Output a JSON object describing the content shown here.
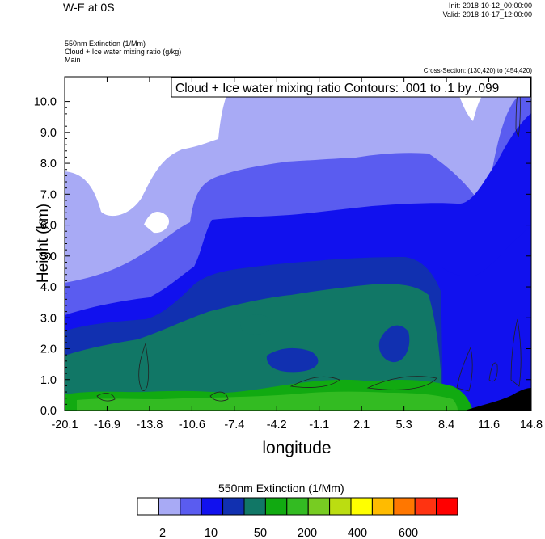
{
  "header": {
    "title": "W-E at 0S",
    "init": "Init: 2018-10-12_00:00:00",
    "valid": "Valid: 2018-10-17_12:00:00",
    "field1": "550nm Extinction   (1/Mm)",
    "field2": "Cloud + Ice water mixing ratio   (g/kg)",
    "field3": "Main",
    "cross_section": "Cross-Section: (130,420) to (454,420)"
  },
  "chart_data": {
    "type": "heatmap",
    "title": "W-E at 0S",
    "xlabel": "longitude",
    "ylabel": "Height (km)",
    "xlim": [
      -20.1,
      14.8
    ],
    "ylim": [
      0.0,
      10.8
    ],
    "x_ticks": [
      "-20.1",
      "-16.9",
      "-13.8",
      "-10.6",
      "-7.4",
      "-4.2",
      "-1.1",
      "2.1",
      "5.3",
      "8.4",
      "11.6",
      "14.8"
    ],
    "y_ticks": [
      "0.0",
      "1.0",
      "2.0",
      "3.0",
      "4.0",
      "5.0",
      "6.0",
      "7.0",
      "8.0",
      "9.0",
      "10.0"
    ],
    "contour_annotation": "Cloud + Ice water mixing ratio Contours: .001 to .1 by .099",
    "colorbar": {
      "title": "550nm Extinction  (1/Mm)",
      "colors": [
        "#ffffff",
        "#a8aaf5",
        "#5a5cf0",
        "#1111ee",
        "#1130b0",
        "#117766",
        "#11aa11",
        "#33bb22",
        "#77cc22",
        "#bbdd11",
        "#ffff00",
        "#ffbb00",
        "#ff7700",
        "#ff3311",
        "#ff0000"
      ],
      "labels": [
        "2",
        "10",
        "50",
        "200",
        "400",
        "600"
      ]
    },
    "grid": false
  }
}
